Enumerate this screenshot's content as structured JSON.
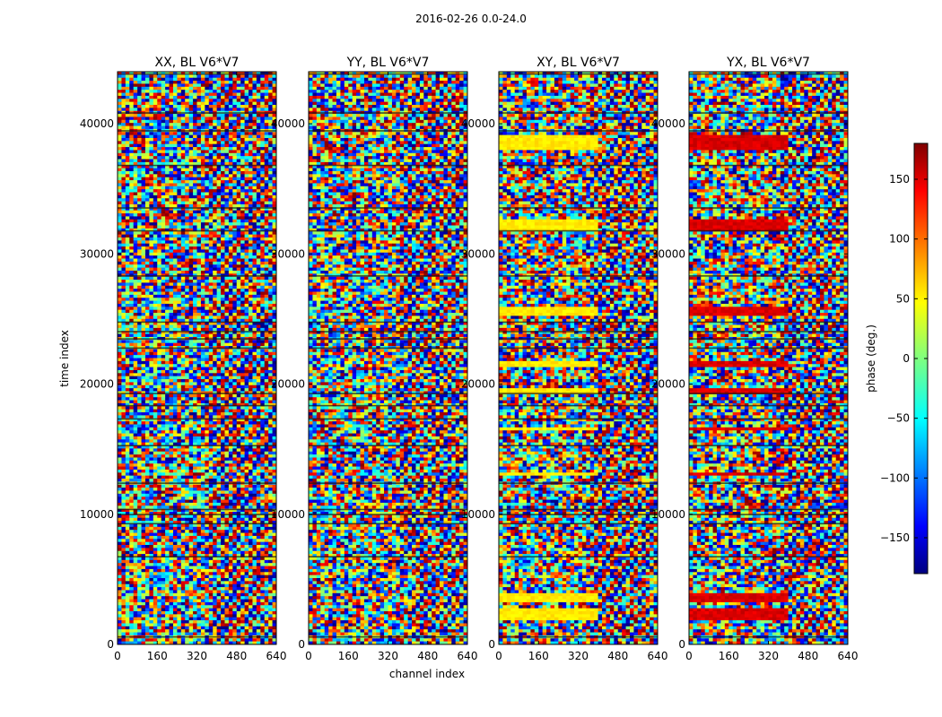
{
  "chart_data": {
    "type": "heatmap",
    "suptitle": "2016-02-26 0.0-24.0",
    "xlabel": "channel index",
    "ylabel": "time index",
    "xlim": [
      0,
      640
    ],
    "ylim": [
      0,
      44000
    ],
    "xticks": [
      0,
      160,
      320,
      480,
      640
    ],
    "yticks": [
      0,
      10000,
      20000,
      30000,
      40000
    ],
    "colorbar": {
      "label": "phase (deg.)",
      "range": [
        -180,
        180
      ],
      "ticks": [
        150,
        100,
        50,
        0,
        -50,
        -100,
        -150
      ],
      "tick_labels": [
        "150",
        "100",
        "50",
        "0",
        "−50",
        "−100",
        "−150"
      ],
      "colormap": "jet"
    },
    "panels": [
      {
        "title": "XX, BL V6*V7",
        "pattern": "noise"
      },
      {
        "title": "YY, BL V6*V7",
        "pattern": "noise"
      },
      {
        "title": "XY, BL V6*V7",
        "pattern": "banded-yellow"
      },
      {
        "title": "YX, BL V6*V7",
        "pattern": "banded-red"
      }
    ]
  }
}
